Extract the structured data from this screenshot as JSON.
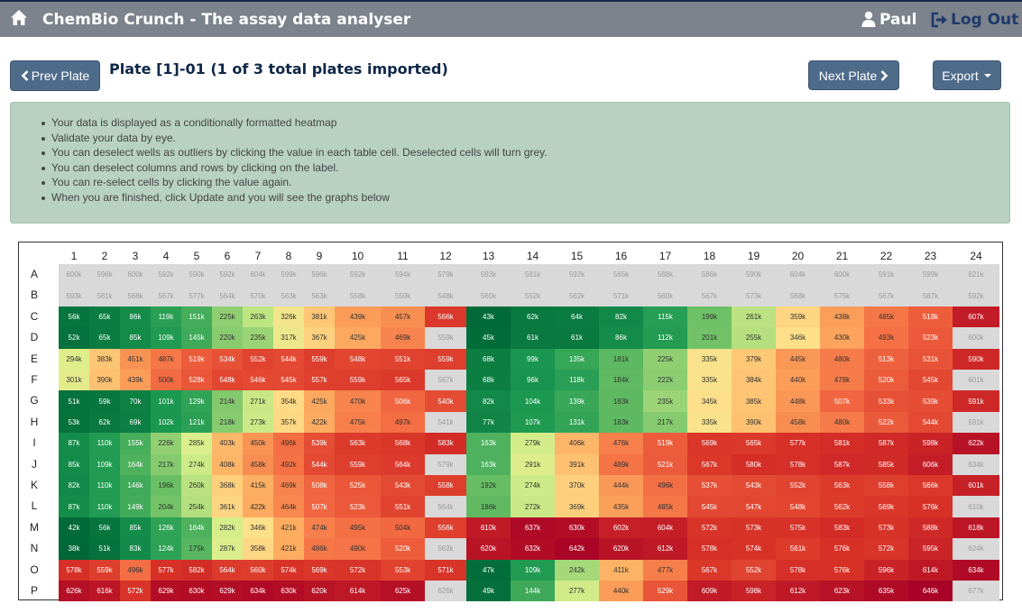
{
  "app": {
    "title": "ChemBio Crunch - The assay data analyser"
  },
  "user": {
    "name": "Paul",
    "logout_label": "Log Out"
  },
  "toolbar": {
    "prev_label": "Prev Plate",
    "next_label": "Next Plate",
    "export_label": "Export"
  },
  "plate": {
    "title": "Plate [1]-01 (1 of 3 total plates imported)",
    "columns": [
      "1",
      "2",
      "3",
      "4",
      "5",
      "6",
      "7",
      "8",
      "9",
      "10",
      "11",
      "12",
      "13",
      "14",
      "15",
      "16",
      "17",
      "18",
      "19",
      "20",
      "21",
      "22",
      "23",
      "24"
    ],
    "rows": [
      "A",
      "B",
      "C",
      "D",
      "E",
      "F",
      "G",
      "H",
      "I",
      "J",
      "K",
      "L",
      "M",
      "N",
      "O",
      "P"
    ],
    "values": [
      [
        "600k",
        "596k",
        "600k",
        "592k",
        "590k",
        "592k",
        "604k",
        "599k",
        "596k",
        "592k",
        "594k",
        "579k",
        "593k",
        "581k",
        "592k",
        "565k",
        "588k",
        "586k",
        "590k",
        "604k",
        "600k",
        "591k",
        "599k",
        "621k"
      ],
      [
        "593k",
        "581k",
        "568k",
        "567k",
        "577k",
        "564k",
        "570k",
        "563k",
        "563k",
        "558k",
        "559k",
        "548k",
        "560k",
        "552k",
        "562k",
        "571k",
        "560k",
        "567k",
        "573k",
        "568k",
        "575k",
        "567k",
        "587k",
        "592k"
      ],
      [
        "56k",
        "65k",
        "86k",
        "119k",
        "151k",
        "225k",
        "263k",
        "326k",
        "381k",
        "439k",
        "457k",
        "566k",
        "43k",
        "62k",
        "64k",
        "82k",
        "115k",
        "199k",
        "261k",
        "359k",
        "438k",
        "485k",
        "518k",
        "607k"
      ],
      [
        "52k",
        "65k",
        "85k",
        "109k",
        "145k",
        "220k",
        "235k",
        "317k",
        "367k",
        "425k",
        "469k",
        "559k",
        "45k",
        "61k",
        "61k",
        "86k",
        "112k",
        "201k",
        "255k",
        "346k",
        "430k",
        "493k",
        "523k",
        "600k"
      ],
      [
        "294k",
        "383k",
        "451k",
        "487k",
        "519k",
        "534k",
        "552k",
        "544k",
        "559k",
        "548k",
        "551k",
        "559k",
        "68k",
        "99k",
        "135k",
        "181k",
        "225k",
        "335k",
        "379k",
        "445k",
        "480k",
        "513k",
        "531k",
        "590k"
      ],
      [
        "301k",
        "390k",
        "439k",
        "500k",
        "528k",
        "548k",
        "546k",
        "545k",
        "557k",
        "559k",
        "565k",
        "567k",
        "68k",
        "96k",
        "118k",
        "184k",
        "222k",
        "335k",
        "384k",
        "440k",
        "478k",
        "520k",
        "545k",
        "601k"
      ],
      [
        "51k",
        "59k",
        "70k",
        "101k",
        "129k",
        "214k",
        "271k",
        "354k",
        "425k",
        "470k",
        "506k",
        "540k",
        "82k",
        "104k",
        "139k",
        "183k",
        "235k",
        "345k",
        "385k",
        "448k",
        "507k",
        "533k",
        "539k",
        "591k"
      ],
      [
        "53k",
        "62k",
        "69k",
        "102k",
        "121k",
        "218k",
        "273k",
        "357k",
        "422k",
        "475k",
        "497k",
        "541k",
        "77k",
        "107k",
        "131k",
        "183k",
        "217k",
        "335k",
        "390k",
        "458k",
        "480k",
        "522k",
        "544k",
        "591k"
      ],
      [
        "87k",
        "110k",
        "155k",
        "226k",
        "285k",
        "403k",
        "450k",
        "496k",
        "539k",
        "563k",
        "568k",
        "583k",
        "163k",
        "279k",
        "406k",
        "476k",
        "519k",
        "569k",
        "565k",
        "577k",
        "581k",
        "587k",
        "598k",
        "622k"
      ],
      [
        "85k",
        "109k",
        "164k",
        "217k",
        "274k",
        "408k",
        "458k",
        "492k",
        "544k",
        "559k",
        "564k",
        "579k",
        "163k",
        "291k",
        "391k",
        "489k",
        "521k",
        "567k",
        "580k",
        "578k",
        "587k",
        "585k",
        "606k",
        "634k"
      ],
      [
        "82k",
        "110k",
        "146k",
        "196k",
        "260k",
        "368k",
        "415k",
        "469k",
        "508k",
        "525k",
        "543k",
        "558k",
        "192k",
        "274k",
        "370k",
        "444k",
        "496k",
        "537k",
        "543k",
        "552k",
        "563k",
        "558k",
        "566k",
        "601k"
      ],
      [
        "87k",
        "110k",
        "149k",
        "204k",
        "254k",
        "361k",
        "422k",
        "464k",
        "507k",
        "523k",
        "551k",
        "564k",
        "186k",
        "272k",
        "369k",
        "435k",
        "485k",
        "545k",
        "547k",
        "548k",
        "562k",
        "569k",
        "576k",
        "610k"
      ],
      [
        "42k",
        "56k",
        "85k",
        "126k",
        "164k",
        "282k",
        "346k",
        "421k",
        "474k",
        "495k",
        "504k",
        "556k",
        "610k",
        "637k",
        "630k",
        "602k",
        "604k",
        "572k",
        "573k",
        "575k",
        "583k",
        "573k",
        "588k",
        "618k"
      ],
      [
        "38k",
        "51k",
        "83k",
        "124k",
        "175k",
        "287k",
        "358k",
        "421k",
        "486k",
        "490k",
        "520k",
        "562k",
        "620k",
        "632k",
        "642k",
        "620k",
        "612k",
        "578k",
        "574k",
        "561k",
        "576k",
        "572k",
        "595k",
        "624k"
      ],
      [
        "578k",
        "559k",
        "496k",
        "577k",
        "582k",
        "564k",
        "560k",
        "574k",
        "569k",
        "572k",
        "553k",
        "571k",
        "47k",
        "109k",
        "242k",
        "411k",
        "477k",
        "567k",
        "552k",
        "578k",
        "576k",
        "596k",
        "614k",
        "634k"
      ],
      [
        "626k",
        "616k",
        "572k",
        "629k",
        "630k",
        "629k",
        "634k",
        "630k",
        "620k",
        "614k",
        "625k",
        "626k",
        "49k",
        "144k",
        "277k",
        "440k",
        "529k",
        "609k",
        "598k",
        "612k",
        "623k",
        "635k",
        "646k",
        "677k"
      ]
    ],
    "deselected_rows": [
      "A",
      "B"
    ],
    "deselected_cells": [
      "D12",
      "D24",
      "F12",
      "F24",
      "H12",
      "H24",
      "J12",
      "J24",
      "L12",
      "L24",
      "N12",
      "N24",
      "P12",
      "P24"
    ]
  },
  "info": {
    "bullets": [
      "Your data is displayed as a conditionally formatted heatmap",
      "Validate your data by eye.",
      "You can deselect wells as outliers by clicking the value in each table cell. Deselected cells will turn grey.",
      "You can deselect columns and rows by clicking on the label.",
      "You can re-select cells by clicking the value again.",
      "When you are finished, click Update and you will see the graphs below"
    ]
  },
  "colors": {
    "navbar": "#7c838c",
    "button": "#4e6b8a",
    "info_bg": "#b8d1c2",
    "deselected": "#d9d9d9",
    "heat_low": "#006837",
    "heat_mid": "#ffe082",
    "heat_high": "#a50026"
  },
  "icons": {
    "home": "home-icon",
    "user": "user-icon",
    "logout": "logout-icon",
    "prev": "chevron-left-icon",
    "next": "chevron-right-icon",
    "export": "caret-down-icon"
  }
}
